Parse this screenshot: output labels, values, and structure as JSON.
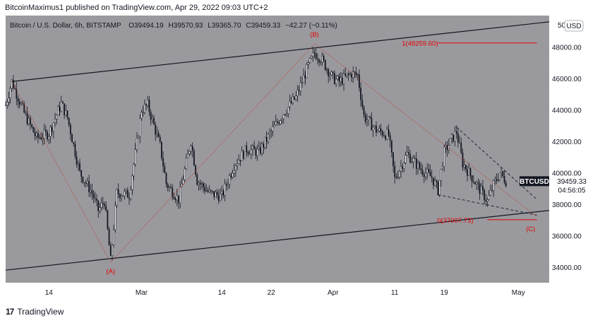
{
  "header": {
    "text": "BitcoinMaximus1 published on TradingView.com, Apr 29, 2022 09:03 UTC+2"
  },
  "legend": {
    "symbol": "Bitcoin / U.S. Dollar, 6h, BITSTAMP",
    "o_label": "O",
    "o": "39494.19",
    "h_label": "H",
    "h": "39570.93",
    "l_label": "L",
    "l": "39365.70",
    "c_label": "C",
    "c": "39459.33",
    "change": "−42.27 (−0.11%)"
  },
  "currency_button": "USD",
  "price_tag": {
    "symbol": "BTCUSD",
    "price": "39459.33",
    "countdown": "04:56:05"
  },
  "annotations": {
    "wave_a": "(A)",
    "wave_b": "(B)",
    "wave_c": "(C)",
    "fib_1": "1(48259.60)",
    "fib_0": "0(37007.73)"
  },
  "footer": {
    "brand": "TradingView"
  },
  "colors": {
    "background": "#9a9a9e",
    "candle": "#131722",
    "accent": "#e60000",
    "panel": "#ffffff"
  },
  "chart_data": {
    "type": "candlestick",
    "symbol": "BTCUSD",
    "interval": "6h",
    "exchange": "BITSTAMP",
    "ylim": [
      33000,
      50000
    ],
    "y_ticks": [
      34000,
      36000,
      38000,
      40000,
      42000,
      44000,
      46000,
      48000
    ],
    "y_tick_labels": [
      "34000.00",
      "36000.00",
      "38000.00",
      "40000.00",
      "42000.00",
      "44000.00",
      "46000.00",
      "48000.00"
    ],
    "y_top_label": "50",
    "x_range": [
      "2022-02-07",
      "2022-05-06"
    ],
    "x_ticks": [
      {
        "label": "14",
        "date": "2022-02-14"
      },
      {
        "label": "Mar",
        "date": "2022-03-01"
      },
      {
        "label": "14",
        "date": "2022-03-14"
      },
      {
        "label": "22",
        "date": "2022-03-22"
      },
      {
        "label": "Apr",
        "date": "2022-04-01"
      },
      {
        "label": "11",
        "date": "2022-04-11"
      },
      {
        "label": "19",
        "date": "2022-04-19"
      },
      {
        "label": "May",
        "date": "2022-05-01"
      }
    ],
    "price_path": [
      {
        "date": "2022-02-07",
        "price": 44300
      },
      {
        "date": "2022-02-08",
        "price": 45800
      },
      {
        "date": "2022-02-10",
        "price": 43800
      },
      {
        "date": "2022-02-12",
        "price": 42200
      },
      {
        "date": "2022-02-14",
        "price": 42500
      },
      {
        "date": "2022-02-16",
        "price": 44400
      },
      {
        "date": "2022-02-17",
        "price": 43500
      },
      {
        "date": "2022-02-19",
        "price": 40000
      },
      {
        "date": "2022-02-21",
        "price": 38700
      },
      {
        "date": "2022-02-22",
        "price": 37600
      },
      {
        "date": "2022-02-23",
        "price": 38200
      },
      {
        "date": "2022-02-24",
        "price": 34400
      },
      {
        "date": "2022-02-25",
        "price": 38700
      },
      {
        "date": "2022-02-27",
        "price": 38600
      },
      {
        "date": "2022-02-28",
        "price": 41200
      },
      {
        "date": "2022-03-01",
        "price": 44000
      },
      {
        "date": "2022-03-02",
        "price": 44300
      },
      {
        "date": "2022-03-04",
        "price": 41700
      },
      {
        "date": "2022-03-05",
        "price": 39300
      },
      {
        "date": "2022-03-07",
        "price": 38300
      },
      {
        "date": "2022-03-09",
        "price": 42000
      },
      {
        "date": "2022-03-10",
        "price": 39500
      },
      {
        "date": "2022-03-12",
        "price": 38700
      },
      {
        "date": "2022-03-14",
        "price": 38500
      },
      {
        "date": "2022-03-16",
        "price": 40500
      },
      {
        "date": "2022-03-18",
        "price": 41500
      },
      {
        "date": "2022-03-20",
        "price": 41300
      },
      {
        "date": "2022-03-22",
        "price": 42600
      },
      {
        "date": "2022-03-24",
        "price": 43800
      },
      {
        "date": "2022-03-26",
        "price": 44800
      },
      {
        "date": "2022-03-28",
        "price": 46800
      },
      {
        "date": "2022-03-29",
        "price": 47600
      },
      {
        "date": "2022-03-30",
        "price": 47300
      },
      {
        "date": "2022-04-01",
        "price": 46000
      },
      {
        "date": "2022-04-02",
        "price": 45800
      },
      {
        "date": "2022-04-04",
        "price": 46300
      },
      {
        "date": "2022-04-05",
        "price": 46200
      },
      {
        "date": "2022-04-06",
        "price": 43600
      },
      {
        "date": "2022-04-08",
        "price": 42700
      },
      {
        "date": "2022-04-10",
        "price": 42400
      },
      {
        "date": "2022-04-11",
        "price": 39600
      },
      {
        "date": "2022-04-13",
        "price": 41200
      },
      {
        "date": "2022-04-15",
        "price": 40300
      },
      {
        "date": "2022-04-17",
        "price": 39700
      },
      {
        "date": "2022-04-18",
        "price": 38900
      },
      {
        "date": "2022-04-19",
        "price": 41300
      },
      {
        "date": "2022-04-21",
        "price": 42600
      },
      {
        "date": "2022-04-22",
        "price": 40600
      },
      {
        "date": "2022-04-24",
        "price": 39400
      },
      {
        "date": "2022-04-26",
        "price": 38200
      },
      {
        "date": "2022-04-27",
        "price": 39200
      },
      {
        "date": "2022-04-28",
        "price": 40000
      },
      {
        "date": "2022-04-29",
        "price": 39459
      }
    ],
    "overlays": {
      "channel_upper": [
        {
          "date": "2022-02-08",
          "price": 45800
        },
        {
          "date": "2022-05-06",
          "price": 49600
        }
      ],
      "channel_lower": [
        {
          "date": "2022-02-07",
          "price": 33800
        },
        {
          "date": "2022-05-06",
          "price": 37600
        }
      ],
      "wave_lines": [
        [
          {
            "date": "2022-02-08",
            "price": 45800
          },
          {
            "date": "2022-02-24",
            "price": 34300
          }
        ],
        [
          {
            "date": "2022-02-24",
            "price": 34300
          },
          {
            "date": "2022-03-29",
            "price": 48200
          }
        ],
        [
          {
            "date": "2022-03-29",
            "price": 48200
          },
          {
            "date": "2022-05-04",
            "price": 37200
          }
        ]
      ],
      "wedge_upper": [
        {
          "date": "2022-04-21",
          "price": 42900
        },
        {
          "date": "2022-05-04",
          "price": 38300
        }
      ],
      "wedge_lower": [
        {
          "date": "2022-04-18",
          "price": 38600
        },
        {
          "date": "2022-05-04",
          "price": 37300
        }
      ],
      "fib_levels": [
        {
          "price": 48259.6,
          "from": "2022-04-18",
          "to": "2022-05-04"
        },
        {
          "price": 37007.73,
          "from": "2022-04-26",
          "to": "2022-05-04"
        }
      ],
      "wave_labels": [
        {
          "key": "wave_a",
          "date": "2022-02-24",
          "price": 34300,
          "side": "below"
        },
        {
          "key": "wave_b",
          "date": "2022-03-29",
          "price": 48200,
          "side": "above"
        },
        {
          "key": "wave_c",
          "date": "2022-05-03",
          "price": 37000,
          "side": "below"
        }
      ]
    }
  }
}
